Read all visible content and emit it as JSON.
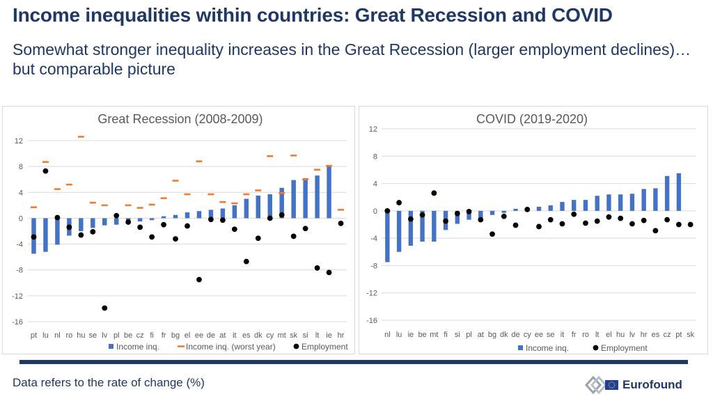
{
  "header": {
    "title": "Income inequalities within countries: Great Recession and COVID",
    "subtitle": "Somewhat stronger inequality increases in the Great Recession (larger employment declines)…but comparable picture"
  },
  "footer": {
    "note": "Data refers to the rate of change (%)",
    "brand": "Eurofound"
  },
  "colors": {
    "text": "#1f3864",
    "bar": "#4472c4",
    "worst": "#ed7d31",
    "dot": "#000000",
    "grid": "#d9d9d9",
    "axis_text": "#595959"
  },
  "chart_data": [
    {
      "type": "bar",
      "title": "Great Recession (2008-2009)",
      "ylim": [
        -16,
        12
      ],
      "yticks": [
        -16,
        -12,
        -8,
        -4,
        0,
        4,
        8,
        12
      ],
      "legend_position": "bottom",
      "categories": [
        "pt",
        "lu",
        "nl",
        "ro",
        "hu",
        "se",
        "lv",
        "pl",
        "be",
        "cz",
        "fi",
        "fr",
        "bg",
        "el",
        "ee",
        "de",
        "at",
        "it",
        "es",
        "dk",
        "cy",
        "mt",
        "sk",
        "si",
        "lt",
        "ie",
        "hr"
      ],
      "series": [
        {
          "name": "Income inq.",
          "kind": "bar",
          "values": [
            -5.5,
            -5.2,
            -4.1,
            -2.7,
            -2.0,
            -1.5,
            -1.1,
            -1.0,
            -0.8,
            -0.5,
            -0.3,
            0.3,
            0.5,
            0.9,
            1.1,
            1.3,
            1.5,
            2.0,
            3.0,
            3.5,
            3.7,
            4.7,
            5.9,
            6.2,
            6.6,
            8.2,
            0.0
          ]
        },
        {
          "name": "Income inq. (worst year)",
          "kind": "dash",
          "values": [
            1.7,
            8.7,
            4.5,
            5.2,
            12.6,
            2.4,
            2.0,
            null,
            2.0,
            1.6,
            2.1,
            3.1,
            5.8,
            3.7,
            8.8,
            3.7,
            2.5,
            2.3,
            3.7,
            4.3,
            9.6,
            3.9,
            9.7,
            6.0,
            7.5,
            8.1,
            1.3
          ]
        },
        {
          "name": "Employment",
          "kind": "dot",
          "values": [
            -2.9,
            7.3,
            0.1,
            -1.4,
            -2.6,
            -2.1,
            -13.9,
            0.4,
            -0.6,
            -1.4,
            -2.9,
            -1.0,
            -3.2,
            -1.2,
            -9.5,
            -0.2,
            -0.3,
            -1.7,
            -6.7,
            -3.1,
            0.0,
            0.5,
            -2.8,
            -1.6,
            -7.7,
            -8.4,
            -0.8
          ]
        }
      ]
    },
    {
      "type": "bar",
      "title": "COVID (2019-2020)",
      "ylim": [
        -16,
        12
      ],
      "yticks": [
        -16,
        -12,
        -8,
        -4,
        0,
        4,
        8,
        12
      ],
      "legend_position": "bottom",
      "categories": [
        "nl",
        "lu",
        "ie",
        "be",
        "mt",
        "fi",
        "si",
        "pl",
        "at",
        "bg",
        "dk",
        "de",
        "cy",
        "ee",
        "se",
        "it",
        "fr",
        "ro",
        "lt",
        "el",
        "hu",
        "lv",
        "hr",
        "es",
        "cz",
        "pt",
        "sk"
      ],
      "series": [
        {
          "name": "Income inq.",
          "kind": "bar",
          "values": [
            -7.5,
            -6.0,
            -5.1,
            -4.5,
            -4.5,
            -2.8,
            -1.9,
            -1.3,
            -1.2,
            -0.6,
            -0.3,
            0.3,
            0.2,
            0.6,
            0.8,
            1.3,
            1.6,
            1.6,
            2.2,
            2.4,
            2.4,
            2.5,
            3.2,
            3.3,
            5.1,
            5.5,
            0.0
          ]
        },
        {
          "name": "Employment",
          "kind": "dot",
          "values": [
            0.0,
            1.2,
            -1.2,
            -0.6,
            2.6,
            -1.5,
            -0.4,
            -0.1,
            -1.3,
            -3.4,
            -0.8,
            -2.1,
            0.2,
            -2.3,
            -1.3,
            -1.9,
            -0.5,
            -1.8,
            -1.5,
            -0.9,
            -1.1,
            -1.9,
            -1.4,
            -2.9,
            -1.3,
            -2.0,
            -2.0
          ]
        }
      ]
    }
  ]
}
